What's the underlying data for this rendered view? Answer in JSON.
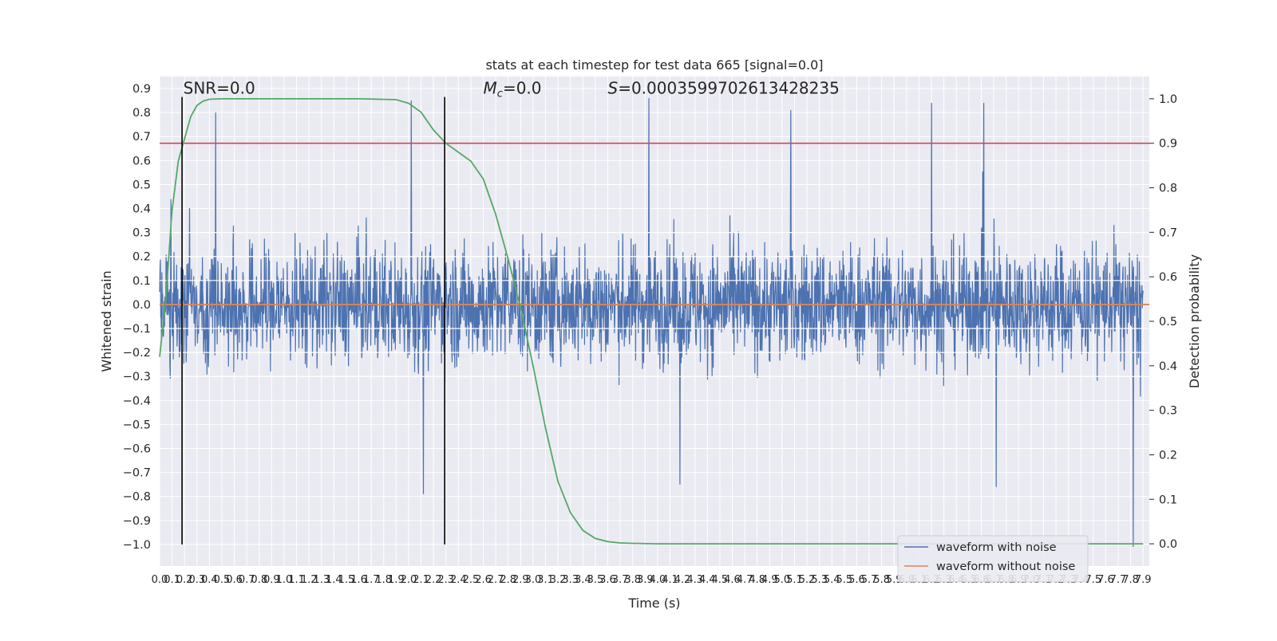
{
  "chart_data": {
    "type": "line",
    "title": "stats at each timestep for test data 665 [signal=0.0]",
    "xlabel": "Time (s)",
    "ylabel": "Whitened strain",
    "y2label": "Detection probability",
    "xlim": [
      0.0,
      7.95
    ],
    "ylim": [
      -1.09,
      0.95
    ],
    "y2lim": [
      -0.05,
      1.05
    ],
    "grid": true,
    "legend_placement": "lower-right",
    "x_ticks": [
      "0.0",
      "0.1",
      "0.2",
      "0.3",
      "0.4",
      "0.5",
      "0.6",
      "0.7",
      "0.8",
      "0.9",
      "1.0",
      "1.1",
      "1.2",
      "1.3",
      "1.4",
      "1.5",
      "1.6",
      "1.7",
      "1.8",
      "1.9",
      "2.0",
      "2.1",
      "2.2",
      "2.3",
      "2.4",
      "2.5",
      "2.6",
      "2.7",
      "2.8",
      "2.9",
      "3.0",
      "3.1",
      "3.2",
      "3.3",
      "3.4",
      "3.5",
      "3.6",
      "3.7",
      "3.8",
      "3.9",
      "4.0",
      "4.1",
      "4.2",
      "4.3",
      "4.4",
      "4.5",
      "4.6",
      "4.7",
      "4.8",
      "4.9",
      "5.0",
      "5.1",
      "5.2",
      "5.3",
      "5.4",
      "5.5",
      "5.6",
      "5.7",
      "5.8",
      "5.9",
      "6.0",
      "6.1",
      "6.2",
      "6.3",
      "6.4",
      "6.5",
      "6.6",
      "6.7",
      "6.8",
      "6.9",
      "7.0",
      "7.1",
      "7.2",
      "7.3",
      "7.4",
      "7.5",
      "7.6",
      "7.7",
      "7.8",
      "7.9"
    ],
    "y_ticks": [
      "0.9",
      "0.8",
      "0.7",
      "0.6",
      "0.5",
      "0.4",
      "0.3",
      "0.2",
      "0.1",
      "0.0",
      "−0.1",
      "−0.2",
      "−0.3",
      "−0.4",
      "−0.5",
      "−0.6",
      "−0.7",
      "−0.8",
      "−0.9",
      "−1.0"
    ],
    "y2_ticks": [
      "1.0",
      "0.9",
      "0.8",
      "0.7",
      "0.6",
      "0.5",
      "0.4",
      "0.3",
      "0.2",
      "0.1",
      "0.0"
    ],
    "series": [
      {
        "name": "waveform with noise",
        "color": "#4c72b0",
        "envelope_note_free": true,
        "peaks": [
          {
            "x": 0.45,
            "y": 0.8
          },
          {
            "x": 2.02,
            "y": 0.85
          },
          {
            "x": 3.93,
            "y": 0.86
          },
          {
            "x": 5.07,
            "y": 0.81
          },
          {
            "x": 6.2,
            "y": 0.84
          },
          {
            "x": 6.62,
            "y": 0.84
          }
        ],
        "troughs": [
          {
            "x": 2.12,
            "y": -0.79
          },
          {
            "x": 4.18,
            "y": -0.75
          },
          {
            "x": 6.72,
            "y": -0.76
          },
          {
            "x": 7.82,
            "y": -1.01
          }
        ],
        "typical_range": [
          -0.45,
          0.45
        ]
      },
      {
        "name": "waveform without noise",
        "color": "#dd8452",
        "x": [
          0.0,
          7.95
        ],
        "y": [
          0.0,
          0.0
        ]
      },
      {
        "color": "#55a868",
        "axis": "right",
        "x": [
          0.0,
          0.05,
          0.1,
          0.15,
          0.2,
          0.25,
          0.3,
          0.35,
          0.4,
          0.5,
          0.8,
          1.2,
          1.6,
          1.9,
          2.0,
          2.1,
          2.2,
          2.3,
          2.4,
          2.5,
          2.6,
          2.7,
          2.8,
          2.9,
          3.0,
          3.1,
          3.2,
          3.3,
          3.4,
          3.5,
          3.6,
          3.7,
          3.8,
          4.0,
          5.0,
          6.0,
          7.0,
          7.9
        ],
        "y": [
          0.42,
          0.55,
          0.75,
          0.86,
          0.91,
          0.96,
          0.985,
          0.995,
          0.999,
          1.0,
          1.0,
          1.0,
          1.0,
          0.998,
          0.99,
          0.97,
          0.93,
          0.9,
          0.88,
          0.86,
          0.82,
          0.74,
          0.64,
          0.53,
          0.4,
          0.26,
          0.14,
          0.07,
          0.03,
          0.012,
          0.005,
          0.002,
          0.001,
          0.0,
          0.0,
          0.0,
          0.0,
          0.0
        ]
      }
    ],
    "threshold": {
      "axis": "right",
      "value": 0.9,
      "color": "#c44e52"
    },
    "vlines": [
      {
        "x": 0.18
      },
      {
        "x": 2.29
      }
    ],
    "vline_range": [
      -1.0,
      0.865
    ],
    "annotations": [
      {
        "text": "SNR=0.0",
        "x": 0.19,
        "y": 0.895
      },
      {
        "text_main": "=0.0",
        "symbol": "M",
        "sub": "c",
        "x": 2.6,
        "y": 0.895
      },
      {
        "text_main": "=0.0003599702613428235",
        "symbol": "S",
        "x": 3.6,
        "y": 0.895
      }
    ]
  }
}
